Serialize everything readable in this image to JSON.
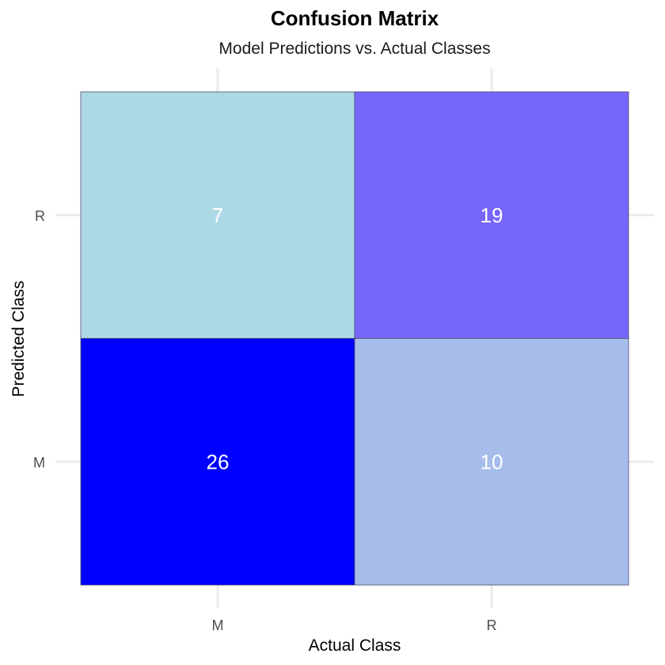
{
  "chart_data": {
    "type": "heatmap",
    "title": "Confusion Matrix",
    "subtitle": "Model Predictions vs. Actual Classes",
    "xlabel": "Actual Class",
    "ylabel": "Predicted Class",
    "x_categories": [
      "M",
      "R"
    ],
    "y_categories": [
      "M",
      "R"
    ],
    "cells": [
      {
        "actual": "M",
        "predicted": "R",
        "value": 7,
        "color": "#add8e6"
      },
      {
        "actual": "R",
        "predicted": "R",
        "value": 19,
        "color": "#7766fa"
      },
      {
        "actual": "M",
        "predicted": "M",
        "value": 26,
        "color": "#0000ff"
      },
      {
        "actual": "R",
        "predicted": "M",
        "value": 10,
        "color": "#a6bdeb"
      }
    ],
    "color_scale": {
      "low": "#add8e6",
      "high": "#0000ff"
    },
    "cell_text_color": "#ffffff",
    "grid": true,
    "legend": "none"
  }
}
